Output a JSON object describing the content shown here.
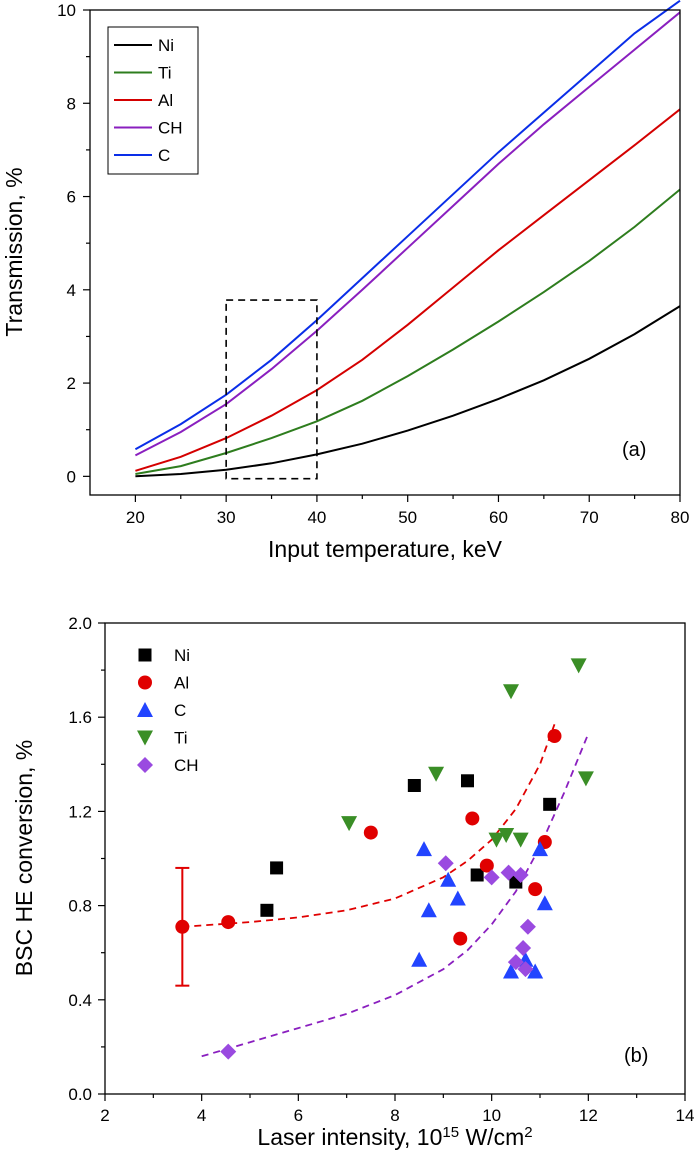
{
  "chart_data": [
    {
      "type": "line",
      "panel_tag": "(a)",
      "xlabel": "Input temperature, keV",
      "ylabel": "Transmission, %",
      "xlim": [
        15,
        80
      ],
      "ylim": [
        -0.4,
        10
      ],
      "xticks": [
        20,
        30,
        40,
        50,
        60,
        70,
        80
      ],
      "yticks": [
        0,
        2,
        4,
        6,
        8,
        10
      ],
      "legend_position": "top-left",
      "x": [
        20,
        25,
        30,
        35,
        40,
        45,
        50,
        55,
        60,
        65,
        70,
        75,
        80
      ],
      "series": [
        {
          "name": "Ni",
          "color": "#000000",
          "values": [
            0.0,
            0.05,
            0.14,
            0.28,
            0.47,
            0.7,
            0.98,
            1.3,
            1.66,
            2.06,
            2.52,
            3.05,
            3.65
          ]
        },
        {
          "name": "Ti",
          "color": "#2e7d1e",
          "values": [
            0.05,
            0.22,
            0.5,
            0.82,
            1.18,
            1.62,
            2.15,
            2.72,
            3.32,
            3.95,
            4.62,
            5.35,
            6.15
          ]
        },
        {
          "name": "Al",
          "color": "#d40000",
          "values": [
            0.12,
            0.42,
            0.82,
            1.3,
            1.85,
            2.5,
            3.25,
            4.05,
            4.85,
            5.6,
            6.35,
            7.1,
            7.87
          ]
        },
        {
          "name": "CH",
          "color": "#8a1fbf",
          "values": [
            0.45,
            0.95,
            1.55,
            2.3,
            3.12,
            4.0,
            4.9,
            5.8,
            6.7,
            7.55,
            8.35,
            9.15,
            9.95
          ]
        },
        {
          "name": "C",
          "color": "#0a2ee8",
          "values": [
            0.58,
            1.12,
            1.75,
            2.5,
            3.35,
            4.25,
            5.15,
            6.05,
            6.95,
            7.8,
            8.65,
            9.5,
            10.2
          ]
        }
      ],
      "annotation_box": {
        "x": [
          30,
          40
        ],
        "y": [
          -0.05,
          3.78
        ]
      }
    },
    {
      "type": "scatter",
      "panel_tag": "(b)",
      "xlabel_main": "Laser intensity, 10",
      "xlabel_exp": "15",
      "xlabel_unit": " W/cm",
      "xlabel_unit_exp": "2",
      "ylabel": "BSC HE conversion, %",
      "xlim": [
        2,
        14
      ],
      "ylim": [
        0.0,
        2.0
      ],
      "xticks": [
        2,
        4,
        6,
        8,
        10,
        12,
        14
      ],
      "yticks": [
        "0.0",
        "0.4",
        "0.8",
        "1.2",
        "1.6",
        "2.0"
      ],
      "legend_position": "top-left",
      "series": [
        {
          "name": "Ni",
          "marker": "square",
          "color": "#000000",
          "points": [
            [
              5.35,
              0.78
            ],
            [
              5.55,
              0.96
            ],
            [
              8.4,
              1.31
            ],
            [
              9.5,
              1.33
            ],
            [
              9.7,
              0.93
            ],
            [
              10.5,
              0.9
            ],
            [
              11.2,
              1.23
            ]
          ]
        },
        {
          "name": "Al",
          "marker": "circle",
          "color": "#e00000",
          "points": [
            [
              3.6,
              0.71
            ],
            [
              4.55,
              0.73
            ],
            [
              7.5,
              1.11
            ],
            [
              9.35,
              0.66
            ],
            [
              9.6,
              1.17
            ],
            [
              9.9,
              0.97
            ],
            [
              10.9,
              0.87
            ],
            [
              11.1,
              1.07
            ],
            [
              11.3,
              1.52
            ]
          ]
        },
        {
          "name": "C",
          "marker": "triangle-up",
          "color": "#2244ff",
          "points": [
            [
              8.5,
              0.57
            ],
            [
              8.6,
              1.04
            ],
            [
              8.7,
              0.78
            ],
            [
              9.1,
              0.91
            ],
            [
              9.3,
              0.83
            ],
            [
              10.4,
              0.52
            ],
            [
              10.7,
              0.57
            ],
            [
              10.9,
              0.52
            ],
            [
              11.0,
              1.04
            ],
            [
              11.1,
              0.81
            ]
          ]
        },
        {
          "name": "Ti",
          "marker": "triangle-down",
          "color": "#3a8e26",
          "points": [
            [
              7.05,
              1.15
            ],
            [
              8.85,
              1.36
            ],
            [
              10.1,
              1.08
            ],
            [
              10.3,
              1.1
            ],
            [
              10.4,
              1.71
            ],
            [
              10.6,
              1.08
            ],
            [
              11.8,
              1.82
            ],
            [
              11.95,
              1.34
            ]
          ]
        },
        {
          "name": "CH",
          "marker": "diamond",
          "color": "#9a4ae0",
          "points": [
            [
              4.55,
              0.18
            ],
            [
              9.05,
              0.98
            ],
            [
              10.0,
              0.92
            ],
            [
              10.35,
              0.94
            ],
            [
              10.5,
              0.56
            ],
            [
              10.6,
              0.93
            ],
            [
              10.65,
              0.62
            ],
            [
              10.7,
              0.53
            ],
            [
              10.75,
              0.71
            ]
          ]
        }
      ],
      "error_bar": {
        "x": 3.6,
        "y": 0.71,
        "low": 0.46,
        "high": 0.96,
        "color": "#e00000"
      },
      "fits": [
        {
          "color": "#e00000",
          "x": [
            3.6,
            5,
            6,
            7,
            8,
            9,
            9.5,
            10,
            10.5,
            11,
            11.3
          ],
          "y": [
            0.71,
            0.73,
            0.75,
            0.78,
            0.83,
            0.92,
            0.99,
            1.08,
            1.21,
            1.4,
            1.57
          ]
        },
        {
          "color": "#8a1fbf",
          "x": [
            4.0,
            5,
            6,
            7,
            8,
            9,
            9.5,
            10,
            10.5,
            11,
            11.5,
            12.0
          ],
          "y": [
            0.16,
            0.22,
            0.28,
            0.34,
            0.42,
            0.53,
            0.61,
            0.72,
            0.86,
            1.05,
            1.28,
            1.53
          ]
        }
      ]
    }
  ]
}
